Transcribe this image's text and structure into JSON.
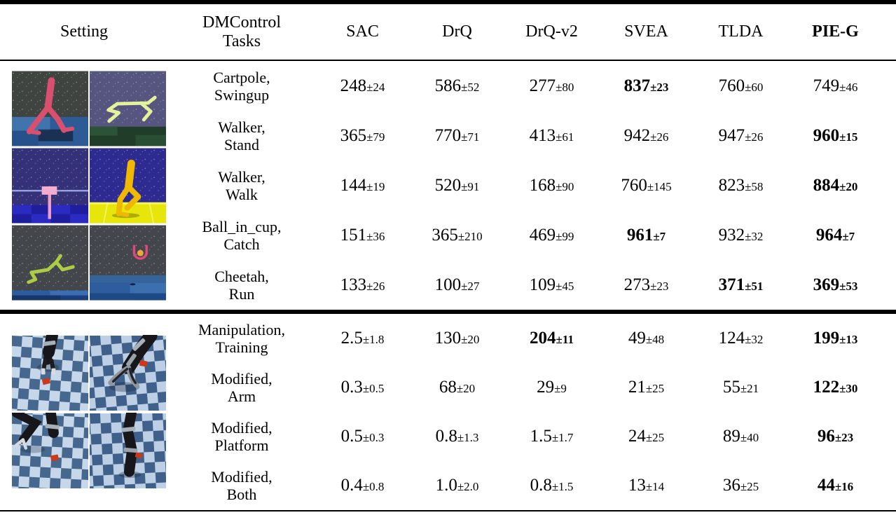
{
  "table": {
    "plus_minus": "±",
    "accent_colors": {
      "text": "#000000",
      "background": "#ffffff",
      "rule": "#000000"
    },
    "columns": [
      {
        "lines": [
          "Setting"
        ],
        "bold": false
      },
      {
        "lines": [
          "DMControl",
          "Tasks"
        ],
        "bold": false
      },
      {
        "lines": [
          "SAC"
        ],
        "bold": false
      },
      {
        "lines": [
          "DrQ"
        ],
        "bold": false
      },
      {
        "lines": [
          "DrQ-v2"
        ],
        "bold": false
      },
      {
        "lines": [
          "SVEA"
        ],
        "bold": false
      },
      {
        "lines": [
          "TLDA"
        ],
        "bold": false
      },
      {
        "lines": [
          "PIE-G"
        ],
        "bold": true
      }
    ],
    "sections": [
      {
        "name": "dmcontrol-section",
        "images": [
          "walker-stand-image",
          "cheetah-green-image",
          "cartpole-image",
          "walker-walk-image",
          "cheetah-run-image",
          "ball-in-cup-image"
        ],
        "rows": [
          {
            "task": [
              "Cartpole,",
              "Swingup"
            ],
            "values": [
              {
                "v": "248",
                "e": "24",
                "bold": false
              },
              {
                "v": "586",
                "e": "52",
                "bold": false
              },
              {
                "v": "277",
                "e": "80",
                "bold": false
              },
              {
                "v": "837",
                "e": "23",
                "bold": true
              },
              {
                "v": "760",
                "e": "60",
                "bold": false
              },
              {
                "v": "749",
                "e": "46",
                "bold": false
              }
            ]
          },
          {
            "task": [
              "Walker,",
              "Stand"
            ],
            "values": [
              {
                "v": "365",
                "e": "79",
                "bold": false
              },
              {
                "v": "770",
                "e": "71",
                "bold": false
              },
              {
                "v": "413",
                "e": "61",
                "bold": false
              },
              {
                "v": "942",
                "e": "26",
                "bold": false
              },
              {
                "v": "947",
                "e": "26",
                "bold": false
              },
              {
                "v": "960",
                "e": "15",
                "bold": true
              }
            ]
          },
          {
            "task": [
              "Walker,",
              "Walk"
            ],
            "values": [
              {
                "v": "144",
                "e": "19",
                "bold": false
              },
              {
                "v": "520",
                "e": "91",
                "bold": false
              },
              {
                "v": "168",
                "e": "90",
                "bold": false
              },
              {
                "v": "760",
                "e": "145",
                "bold": false
              },
              {
                "v": "823",
                "e": "58",
                "bold": false
              },
              {
                "v": "884",
                "e": "20",
                "bold": true
              }
            ]
          },
          {
            "task": [
              "Ball_in_cup,",
              "Catch"
            ],
            "values": [
              {
                "v": "151",
                "e": "36",
                "bold": false
              },
              {
                "v": "365",
                "e": "210",
                "bold": false
              },
              {
                "v": "469",
                "e": "99",
                "bold": false
              },
              {
                "v": "961",
                "e": "7",
                "bold": true
              },
              {
                "v": "932",
                "e": "32",
                "bold": false
              },
              {
                "v": "964",
                "e": "7",
                "bold": true
              }
            ]
          },
          {
            "task": [
              "Cheetah,",
              "Run"
            ],
            "values": [
              {
                "v": "133",
                "e": "26",
                "bold": false
              },
              {
                "v": "100",
                "e": "27",
                "bold": false
              },
              {
                "v": "109",
                "e": "45",
                "bold": false
              },
              {
                "v": "273",
                "e": "23",
                "bold": false
              },
              {
                "v": "371",
                "e": "51",
                "bold": true
              },
              {
                "v": "369",
                "e": "53",
                "bold": true
              }
            ]
          }
        ]
      },
      {
        "name": "manipulation-section",
        "images": [
          "robot-arm-top-image",
          "robot-arm-grip-image",
          "robot-arm-side-image",
          "robot-arm-center-image"
        ],
        "rows": [
          {
            "task": [
              "Manipulation,",
              "Training"
            ],
            "values": [
              {
                "v": "2.5",
                "e": "1.8",
                "bold": false
              },
              {
                "v": "130",
                "e": "20",
                "bold": false
              },
              {
                "v": "204",
                "e": "11",
                "bold": true
              },
              {
                "v": "49",
                "e": "48",
                "bold": false
              },
              {
                "v": "124",
                "e": "32",
                "bold": false
              },
              {
                "v": "199",
                "e": "13",
                "bold": true
              }
            ]
          },
          {
            "task": [
              "Modified,",
              "Arm"
            ],
            "values": [
              {
                "v": "0.3",
                "e": "0.5",
                "bold": false
              },
              {
                "v": "68",
                "e": "20",
                "bold": false
              },
              {
                "v": "29",
                "e": "9",
                "bold": false
              },
              {
                "v": "21",
                "e": "25",
                "bold": false
              },
              {
                "v": "55",
                "e": "21",
                "bold": false
              },
              {
                "v": "122",
                "e": "30",
                "bold": true
              }
            ]
          },
          {
            "task": [
              "Modified,",
              "Platform"
            ],
            "values": [
              {
                "v": "0.5",
                "e": "0.3",
                "bold": false
              },
              {
                "v": "0.8",
                "e": "1.3",
                "bold": false
              },
              {
                "v": "1.5",
                "e": "1.7",
                "bold": false
              },
              {
                "v": "24",
                "e": "25",
                "bold": false
              },
              {
                "v": "89",
                "e": "40",
                "bold": false
              },
              {
                "v": "96",
                "e": "23",
                "bold": true
              }
            ]
          },
          {
            "task": [
              "Modified,",
              "Both"
            ],
            "values": [
              {
                "v": "0.4",
                "e": "0.8",
                "bold": false
              },
              {
                "v": "1.0",
                "e": "2.0",
                "bold": false
              },
              {
                "v": "0.8",
                "e": "1.5",
                "bold": false
              },
              {
                "v": "13",
                "e": "14",
                "bold": false
              },
              {
                "v": "36",
                "e": "25",
                "bold": false
              },
              {
                "v": "44",
                "e": "16",
                "bold": true
              }
            ]
          }
        ]
      }
    ]
  }
}
